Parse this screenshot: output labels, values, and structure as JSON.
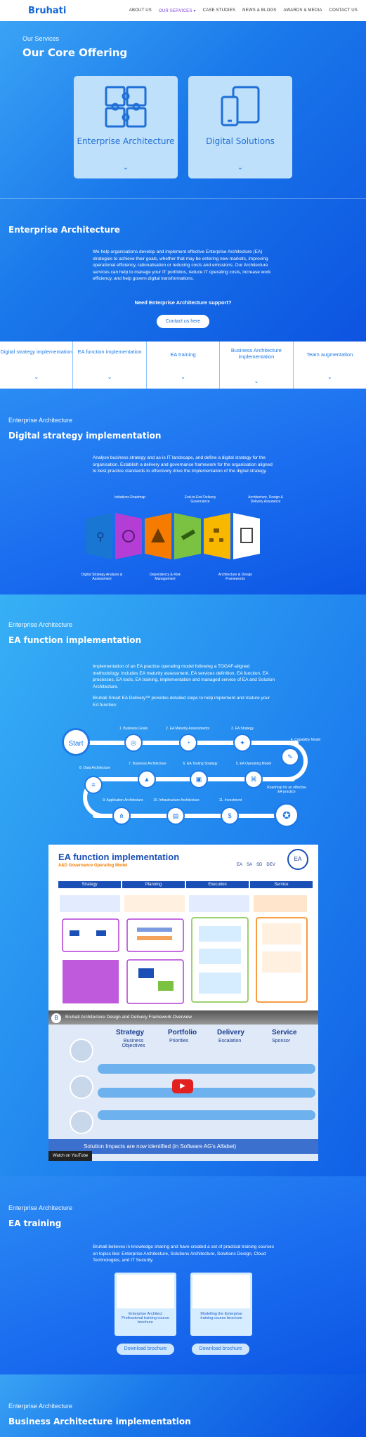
{
  "nav": {
    "logo": "Bruhati",
    "links": [
      "ABOUT US",
      "OUR SERVICES ▾",
      "CASE STUDIES",
      "NEWS & BLOGS",
      "AWARDS & MEDIA",
      "CONTACT US"
    ]
  },
  "hero": {
    "eyebrow": "Our Services",
    "title": "Our Core Offering",
    "cards": [
      {
        "label": "Enterprise Architecture"
      },
      {
        "label": "Digital Solutions"
      }
    ]
  },
  "ea": {
    "title": "Enterprise Architecture",
    "body": "We help organisations develop and implement effective Enterprise Architecture (EA) strategies to achieve their goals, whether that may be entering new markets, improving operational efficiency, rationalisation or reducing costs and emissions. Our Architecture services can help to manage your IT portfolios, reduce IT operating costs, increase work efficiency, and help govern digital transformations.",
    "question": "Need Enterprise Architecture support?",
    "cta": "Contact us here"
  },
  "tabs": [
    "Digital strategy implementation",
    "EA function implementation",
    "EA training",
    "Business Architecture implementation",
    "Team augmentation"
  ],
  "dsi": {
    "eyebrow": "Enterprise Architecture",
    "title": "Digital strategy implementation",
    "body": "Analyse business strategy and as-is IT landscape, and define a digital strategy for the organisation. Establish a delivery and governance framework for the organisation aligned to best practice standards to effectively drive the implementation of the digital strategy.",
    "top_labels": [
      "Initiatives Roadmap",
      "End-to-End Delivery Governance",
      "Architecture, Design & Delivery Assurance"
    ],
    "bottom_labels": [
      "Digital Strategy Analysis & Assessment",
      "Dependency & Risk Management",
      "Architecture & Design Frameworks"
    ]
  },
  "efi": {
    "eyebrow": "Enterprise Architecture",
    "title": "EA function implementation",
    "body1": "Implementation of an EA practice operating model following a TOGAF-aligned methodology. Includes EA maturity assessment, EA services definition, EA function, EA processes, EA tools, EA training, implementation and managed service of EA and Solution Architecture.",
    "body2": "Bruhati Smart EA Delivery™ provides detailed steps to help implement and mature your EA function:",
    "roadmap": {
      "start": "Start",
      "steps": [
        "1. Business Goals",
        "2. EA Maturity Assessments",
        "3. EA Strategy",
        "4. Capability Model",
        "5. EA Operating Model",
        "6. EA Tooling Strategy",
        "7. Business Architecture",
        "8. Data Architecture",
        "9. Application Architecture",
        "10. Infrastructure Architecture",
        "11. Investment"
      ],
      "end": "Roadmap for an effective EA practice"
    },
    "diagram": {
      "title": "EA function implementation",
      "subtitle": "A&D Governance Operating Model",
      "roles": [
        "EA",
        "SA",
        "SD",
        "DEV"
      ],
      "lanes": [
        "Strategy",
        "Planning",
        "Execution",
        "Service"
      ]
    },
    "video": {
      "title": "Bruhati Architecture Design and Delivery Framework Overview",
      "cols": [
        "Strategy",
        "Portfolio",
        "Delivery",
        "Service"
      ],
      "subs": [
        "Business Objectives",
        "Priorities",
        "Escalation",
        "Sponsor"
      ],
      "caption": "Solution Impacts are now identified (in Software AG's Alfabet)",
      "watch": "Watch on YouTube"
    }
  },
  "training": {
    "eyebrow": "Enterprise Architecture",
    "title": "EA training",
    "body": "Bruhati believes in knowledge sharing and have created a set of practical training courses on topics like: Enterprise Architecture, Solutions Architecture, Solutions Design, Cloud Technologies, and IT Security.",
    "brochures": [
      {
        "caption": "Enterprise Architect Professional training course brochure",
        "button": "Download brochure"
      },
      {
        "caption": "Modelling the Enterprise training course brochure",
        "button": "Download brochure"
      }
    ]
  },
  "bai": {
    "eyebrow": "Enterprise Architecture",
    "title": "Business Architecture implementation"
  }
}
